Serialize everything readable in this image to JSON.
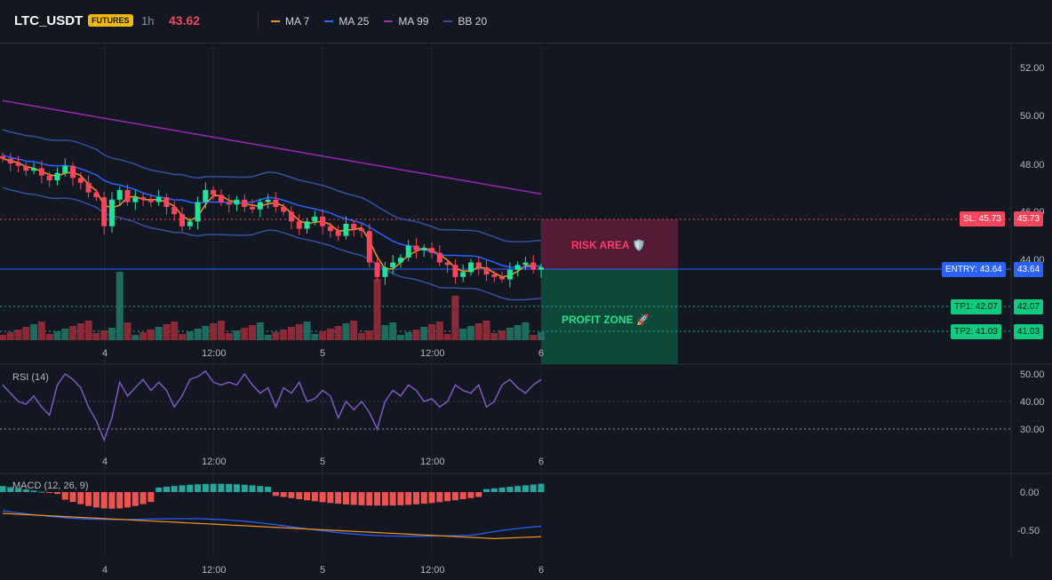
{
  "header": {
    "symbol": "LTC_USDT",
    "badge": "FUTURES",
    "timeframe": "1h",
    "price": "43.62",
    "legend": [
      {
        "label": "MA 7",
        "color": "#f7931a"
      },
      {
        "label": "MA 25",
        "color": "#2962ff"
      },
      {
        "label": "MA 99",
        "color": "#9c27b0"
      },
      {
        "label": "BB 20",
        "color": "#3550a0"
      }
    ]
  },
  "price_axis": [
    "52.00",
    "50.00",
    "48.00",
    "46.00",
    "44.00"
  ],
  "x_axis": [
    "4",
    "12:00",
    "5",
    "12:00",
    "6"
  ],
  "levels": {
    "sl": "SL: 45.73",
    "sl_value": "45.73",
    "entry": "ENTRY: 43.64",
    "entry_value": "43.64",
    "tp1": "TP1: 42.07",
    "tp1_value": "42.07",
    "tp2": "TP2: 41.03",
    "tp2_value": "41.03"
  },
  "zones": {
    "risk": "RISK AREA 🛡️",
    "profit": "PROFIT ZONE 🚀"
  },
  "rsi": {
    "label": "RSI (14)",
    "axis": [
      "50.00",
      "40.00",
      "30.00"
    ]
  },
  "macd": {
    "label": "MACD (12, 26, 9)",
    "axis": [
      "0.00",
      "-0.50"
    ]
  },
  "colors": {
    "up": "#26a69a",
    "down": "#f6465d",
    "ma7": "#f7931a",
    "ma25": "#2962ff",
    "ma99": "#9c27b0",
    "bb": "#3550a0",
    "rsi": "#7e57c2"
  }
}
